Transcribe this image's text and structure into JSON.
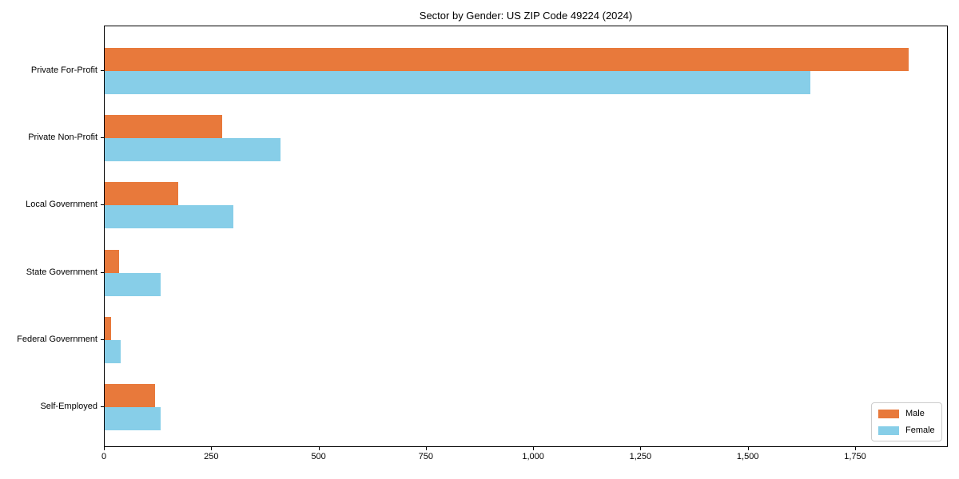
{
  "chart_data": {
    "type": "bar",
    "orientation": "horizontal",
    "title": "Sector by Gender: US ZIP Code 49224 (2024)",
    "categories": [
      "Private For-Profit",
      "Private Non-Profit",
      "Local Government",
      "State Government",
      "Federal Government",
      "Self-Employed"
    ],
    "series": [
      {
        "name": "Male",
        "color": "#e8793b",
        "values": [
          1872,
          274,
          171,
          34,
          14,
          117
        ]
      },
      {
        "name": "Female",
        "color": "#87cee8",
        "values": [
          1644,
          409,
          299,
          130,
          37,
          131
        ]
      }
    ],
    "xlabel": "",
    "ylabel": "",
    "xlim": [
      0,
      1966
    ],
    "xticks": [
      {
        "value": 0,
        "label": "0"
      },
      {
        "value": 250,
        "label": "250"
      },
      {
        "value": 500,
        "label": "500"
      },
      {
        "value": 750,
        "label": "750"
      },
      {
        "value": 1000,
        "label": "1,000"
      },
      {
        "value": 1250,
        "label": "1,250"
      },
      {
        "value": 1500,
        "label": "1,500"
      },
      {
        "value": 1750,
        "label": "1,750"
      }
    ],
    "grid": false,
    "legend_position": "lower right"
  }
}
